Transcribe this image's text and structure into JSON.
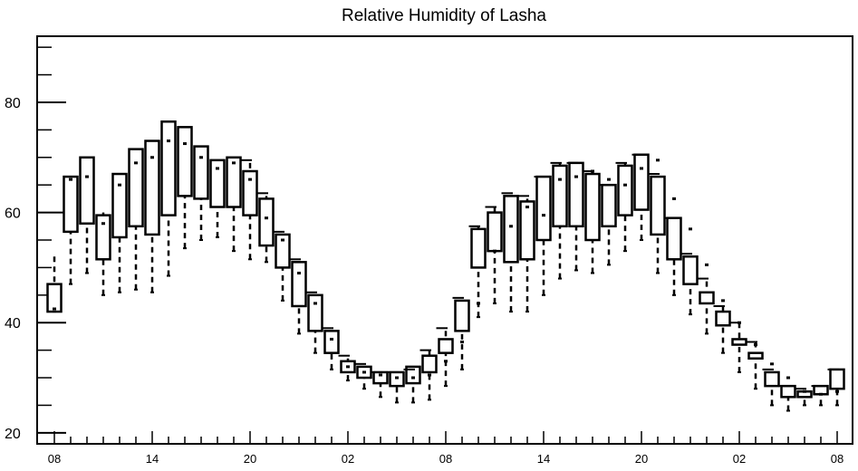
{
  "chart_data": {
    "type": "boxplot",
    "title": "Relative Humidity of Lasha",
    "xlabel": "",
    "ylabel": "",
    "ylim": [
      18,
      92
    ],
    "yticks": [
      20,
      40,
      60,
      80
    ],
    "xtick_labels": [
      "08",
      "14",
      "20",
      "02",
      "08",
      "14",
      "20",
      "02",
      "08"
    ],
    "grid": false,
    "legend": "none",
    "colors": {
      "box_fill": "#ffffff",
      "stroke": "#000000"
    },
    "series": [
      {
        "x": [
          0,
          1,
          2,
          3,
          4,
          5,
          6,
          7,
          8,
          9,
          10,
          11,
          12,
          13,
          14,
          15,
          16,
          17,
          18,
          19,
          20,
          21,
          22,
          23,
          24,
          25,
          26,
          27,
          28,
          29,
          30,
          31,
          32,
          33,
          34,
          35,
          36,
          37,
          38,
          39,
          40,
          41,
          42,
          43,
          44,
          45,
          46,
          47,
          48
        ],
        "open": [
          42,
          56.5,
          58,
          51.5,
          55.5,
          57.5,
          56,
          59.5,
          63,
          62.5,
          61,
          61,
          59.5,
          54,
          50,
          43,
          38.5,
          34.5,
          31,
          30,
          29,
          28.5,
          29,
          31,
          34.5,
          38.5,
          50,
          53,
          51,
          51.5,
          55,
          57.5,
          57.5,
          55,
          57.5,
          59.5,
          60.5,
          56,
          51.5,
          47,
          43.5,
          39.5,
          36,
          33.5,
          28.5,
          26.5,
          26.5,
          27,
          28
        ],
        "close": [
          47,
          66.5,
          70,
          59.5,
          67,
          71.5,
          73,
          76.5,
          75.5,
          72,
          69.5,
          70,
          67.5,
          62.5,
          56,
          51,
          45,
          38.5,
          33,
          32,
          31,
          31,
          32,
          34,
          37,
          44,
          57,
          60,
          63,
          62,
          66.5,
          68.5,
          69,
          67,
          65,
          68.5,
          70.5,
          66.5,
          59,
          52,
          45.5,
          42,
          37,
          34.5,
          31,
          28.5,
          27.5,
          28.5,
          31.5
        ],
        "high": [
          52,
          66.5,
          70,
          60,
          67,
          71.5,
          73,
          76.5,
          75.5,
          72,
          69.5,
          70,
          69,
          63,
          56,
          51,
          45,
          38.5,
          33.5,
          32,
          31,
          31,
          32,
          35,
          38.5,
          44,
          57.5,
          61,
          63,
          62.5,
          66.5,
          69,
          69,
          67.5,
          65,
          69,
          70.5,
          66.5,
          59,
          52,
          47.5,
          43,
          40,
          36.5,
          31,
          28.5,
          27.5,
          28.5,
          31.5
        ],
        "low": [
          42,
          47,
          49,
          45,
          45.5,
          46,
          45.5,
          48.5,
          53.5,
          55,
          55.5,
          53,
          51.5,
          51,
          44,
          38,
          34.5,
          31.5,
          29.5,
          28,
          26.5,
          25.5,
          25.5,
          26,
          28.5,
          31.5,
          41,
          43.5,
          42,
          42,
          45,
          48,
          49.5,
          49,
          50.5,
          53,
          55,
          49,
          45,
          41.5,
          38,
          34.5,
          31,
          28,
          25,
          24,
          25,
          25,
          25
        ],
        "median": [
          42.5,
          66,
          66.5,
          58,
          65,
          69,
          70,
          73,
          72.5,
          70,
          68,
          69,
          66,
          59,
          55,
          49,
          43.5,
          37,
          32,
          31,
          30.5,
          30,
          30,
          30.5,
          33,
          36.5,
          43.5,
          53,
          57.5,
          61,
          59.5,
          66,
          66.5,
          67.5,
          66,
          65,
          68,
          69.5,
          62.5,
          57,
          50.5,
          44,
          40,
          36,
          32.5,
          30,
          27.5,
          27,
          27.5
        ],
        "prev_close": [
          null,
          null,
          null,
          null,
          null,
          null,
          null,
          null,
          null,
          null,
          null,
          null,
          69.5,
          63.5,
          56.5,
          51.5,
          45.5,
          39,
          34,
          32.5,
          31,
          31,
          31.5,
          35,
          39,
          44.5,
          57.5,
          61,
          63.5,
          63,
          66.5,
          69,
          69,
          67.5,
          65,
          69,
          70.5,
          67,
          59,
          52.5,
          48,
          43,
          40,
          36.5,
          31.5,
          28.5,
          28,
          28.5,
          31.5
        ]
      }
    ]
  }
}
